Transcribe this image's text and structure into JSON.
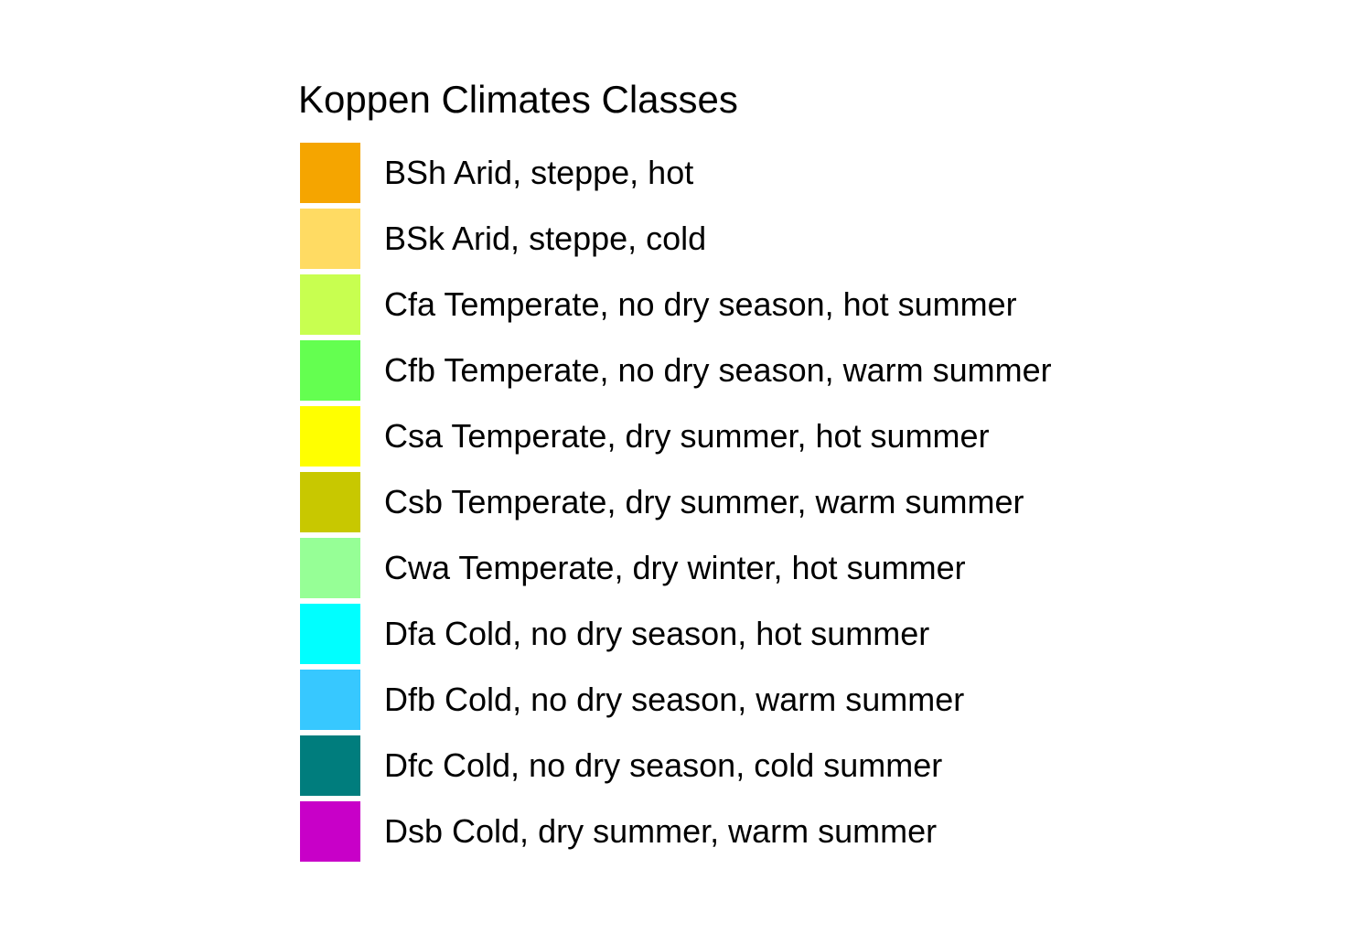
{
  "legend": {
    "title": "Koppen Climates Classes",
    "items": [
      {
        "label": "BSh Arid, steppe, hot",
        "color": "#F5A500"
      },
      {
        "label": "BSk Arid, steppe, cold",
        "color": "#FFDB63"
      },
      {
        "label": "Cfa Temperate, no dry season, hot summer",
        "color": "#C8FF50"
      },
      {
        "label": "Cfb Temperate, no dry season, warm summer",
        "color": "#64FF50"
      },
      {
        "label": "Csa Temperate, dry summer, hot summer",
        "color": "#FFFF00"
      },
      {
        "label": "Csb Temperate, dry summer, warm summer",
        "color": "#C8C800"
      },
      {
        "label": "Cwa Temperate, dry winter, hot summer",
        "color": "#96FF96"
      },
      {
        "label": "Dfa Cold, no dry season, hot summer",
        "color": "#00FFFF"
      },
      {
        "label": "Dfb Cold, no dry season, warm summer",
        "color": "#37C8FF"
      },
      {
        "label": "Dfc Cold, no dry season, cold summer",
        "color": "#007D7D"
      },
      {
        "label": "Dsb Cold, dry summer, warm summer",
        "color": "#C800C8"
      }
    ]
  }
}
